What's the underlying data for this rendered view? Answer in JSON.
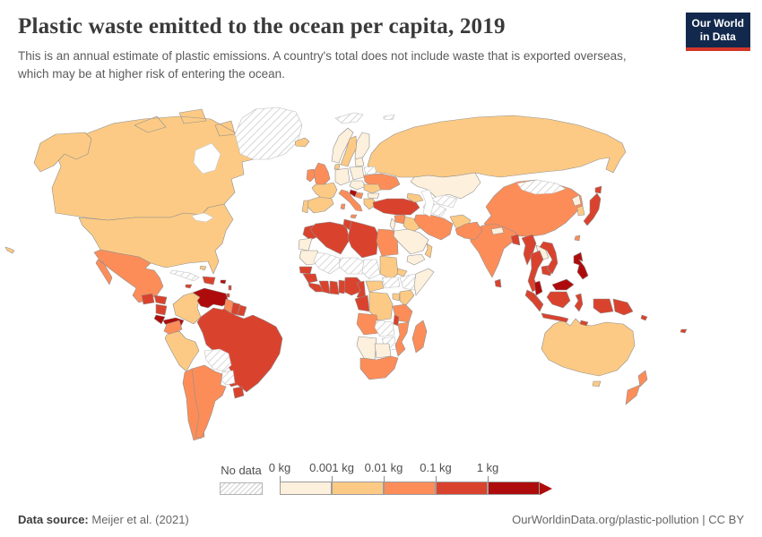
{
  "header": {
    "title": "Plastic waste emitted to the ocean per capita, 2019",
    "subtitle": "This is an annual estimate of plastic emissions. A country's total does not include waste that is exported overseas, which may be at higher risk of entering the ocean.",
    "logo_line1": "Our World",
    "logo_line2": "in Data"
  },
  "legend": {
    "no_data_label": "No data"
  },
  "footer": {
    "source_label": "Data source:",
    "source_value": "Meijer et al. (2021)",
    "credit": "OurWorldinData.org/plastic-pollution | CC BY"
  },
  "chart_data": {
    "type": "choropleth_map",
    "title": "Plastic waste emitted to the ocean per capita, 2019",
    "unit": "kg per capita",
    "legend": {
      "no_data_label": "No data",
      "tick_labels": [
        "0 kg",
        "0.001 kg",
        "0.01 kg",
        "0.1 kg",
        "1 kg"
      ],
      "bin_order": [
        "b1",
        "b2",
        "b3",
        "b4",
        "b5"
      ],
      "bins": {
        "b1": {
          "label": "0–0.001 kg",
          "color": "#fdf0dc"
        },
        "b2": {
          "label": "0.001–0.01 kg",
          "color": "#fcca84"
        },
        "b3": {
          "label": "0.01–0.1 kg",
          "color": "#fc8d59"
        },
        "b4": {
          "label": "0.1–1 kg",
          "color": "#d9432e"
        },
        "b5": {
          "label": "more than 1 kg",
          "color": "#ae0c0c"
        },
        "nd": {
          "label": "No data",
          "color": "hatch"
        }
      }
    },
    "countries": {
      "russia": "b2",
      "canada": "b2",
      "usa": "b2",
      "china": "b3",
      "brazil": "b4",
      "australia": "b2",
      "india": "b3",
      "alaska": "b2",
      "greenland": "nd",
      "hawaii": "b2",
      "mexico": "b3",
      "guatemala": "b4",
      "honduras": "b4",
      "nicaragua": "b4",
      "costa-rica": "b5",
      "panama": "b5",
      "cuba": "nd",
      "jamaica": "b4",
      "hispaniola": "b4",
      "puerto-rico": "b5",
      "bahamas": "b2",
      "lesser-antilles": "b4",
      "trinidad-and-tobago": "b5",
      "colombia": "b2",
      "venezuela": "b5",
      "guyana": "b3",
      "suriname": "b4",
      "french-guiana": "b4",
      "ecuador": "b3",
      "peru": "b2",
      "bolivia": "nd",
      "paraguay": "nd",
      "uruguay": "b4",
      "chile": "b3",
      "argentina": "b3",
      "iceland": "b2",
      "norway": "b1",
      "sweden": "b2",
      "finland": "b1",
      "denmark": "b2",
      "uk": "b3",
      "ireland": "b3",
      "france": "b2",
      "spain": "b2",
      "portugal": "b2",
      "germany": "b1",
      "poland": "b1",
      "central-europe": "b1",
      "baltics": "b1",
      "belarus": "nd",
      "ukraine": "b3",
      "romania": "b2",
      "bulgaria": "b1",
      "italy": "b3",
      "croatia": "b5",
      "serbia": "b3",
      "greece": "b2",
      "svalbard": "nd",
      "franz-josef-land": "nd",
      "morocco": "b4",
      "western-sahara": "b1",
      "algeria": "b4",
      "tunisia": "b4",
      "libya": "b4",
      "egypt": "b3",
      "mauritania": "b1",
      "mali": "nd",
      "niger": "nd",
      "chad": "nd",
      "sudan": "b2",
      "south-sudan": "nd",
      "eritrea": "b2",
      "ethiopia": "nd",
      "somalia": "b1",
      "senegal": "b4",
      "guinea": "b4",
      "sierra-leone-liberia": "b4",
      "cote-divoire": "b4",
      "ghana": "b4",
      "togo-benin": "b4",
      "nigeria": "b4",
      "cameroon": "b4",
      "central-african-republic": "b2",
      "gabon-congo": "b4",
      "dr-congo": "b2",
      "uganda": "b2",
      "kenya": "b2",
      "tanzania": "b3",
      "malawi": "b4",
      "angola": "b3",
      "zambia": "nd",
      "zimbabwe": "nd",
      "mozambique": "b3",
      "namibia": "b1",
      "botswana": "b1",
      "south-africa": "b3",
      "madagascar": "b3",
      "turkey": "b4",
      "caucasus": "b2",
      "syria": "b3",
      "lebanon-israel-jordan": "b1",
      "iraq": "b2",
      "saudi-arabia": "b1",
      "yemen": "b1",
      "oman": "b2",
      "iran": "b3",
      "kazakhstan": "b1",
      "uzbekistan": "nd",
      "turkmenistan": "nd",
      "afghanistan": "b2",
      "pakistan": "b3",
      "nepal": "b1",
      "sri-lanka": "b4",
      "bangladesh": "b4",
      "mongolia": "nd",
      "north-korea": "b1",
      "south-korea": "b2",
      "japan": "b4",
      "taiwan": "b3",
      "myanmar": "b4",
      "laos": "b1",
      "thailand": "b4",
      "cambodia": "b4",
      "vietnam": "b4",
      "malaysia": "b5",
      "philippines": "b5",
      "indonesia": "b4",
      "timor": "b4",
      "papua-new-guinea": "b4",
      "solomon-islands": "b4",
      "new-zealand": "b3",
      "fiji": "b4"
    }
  }
}
